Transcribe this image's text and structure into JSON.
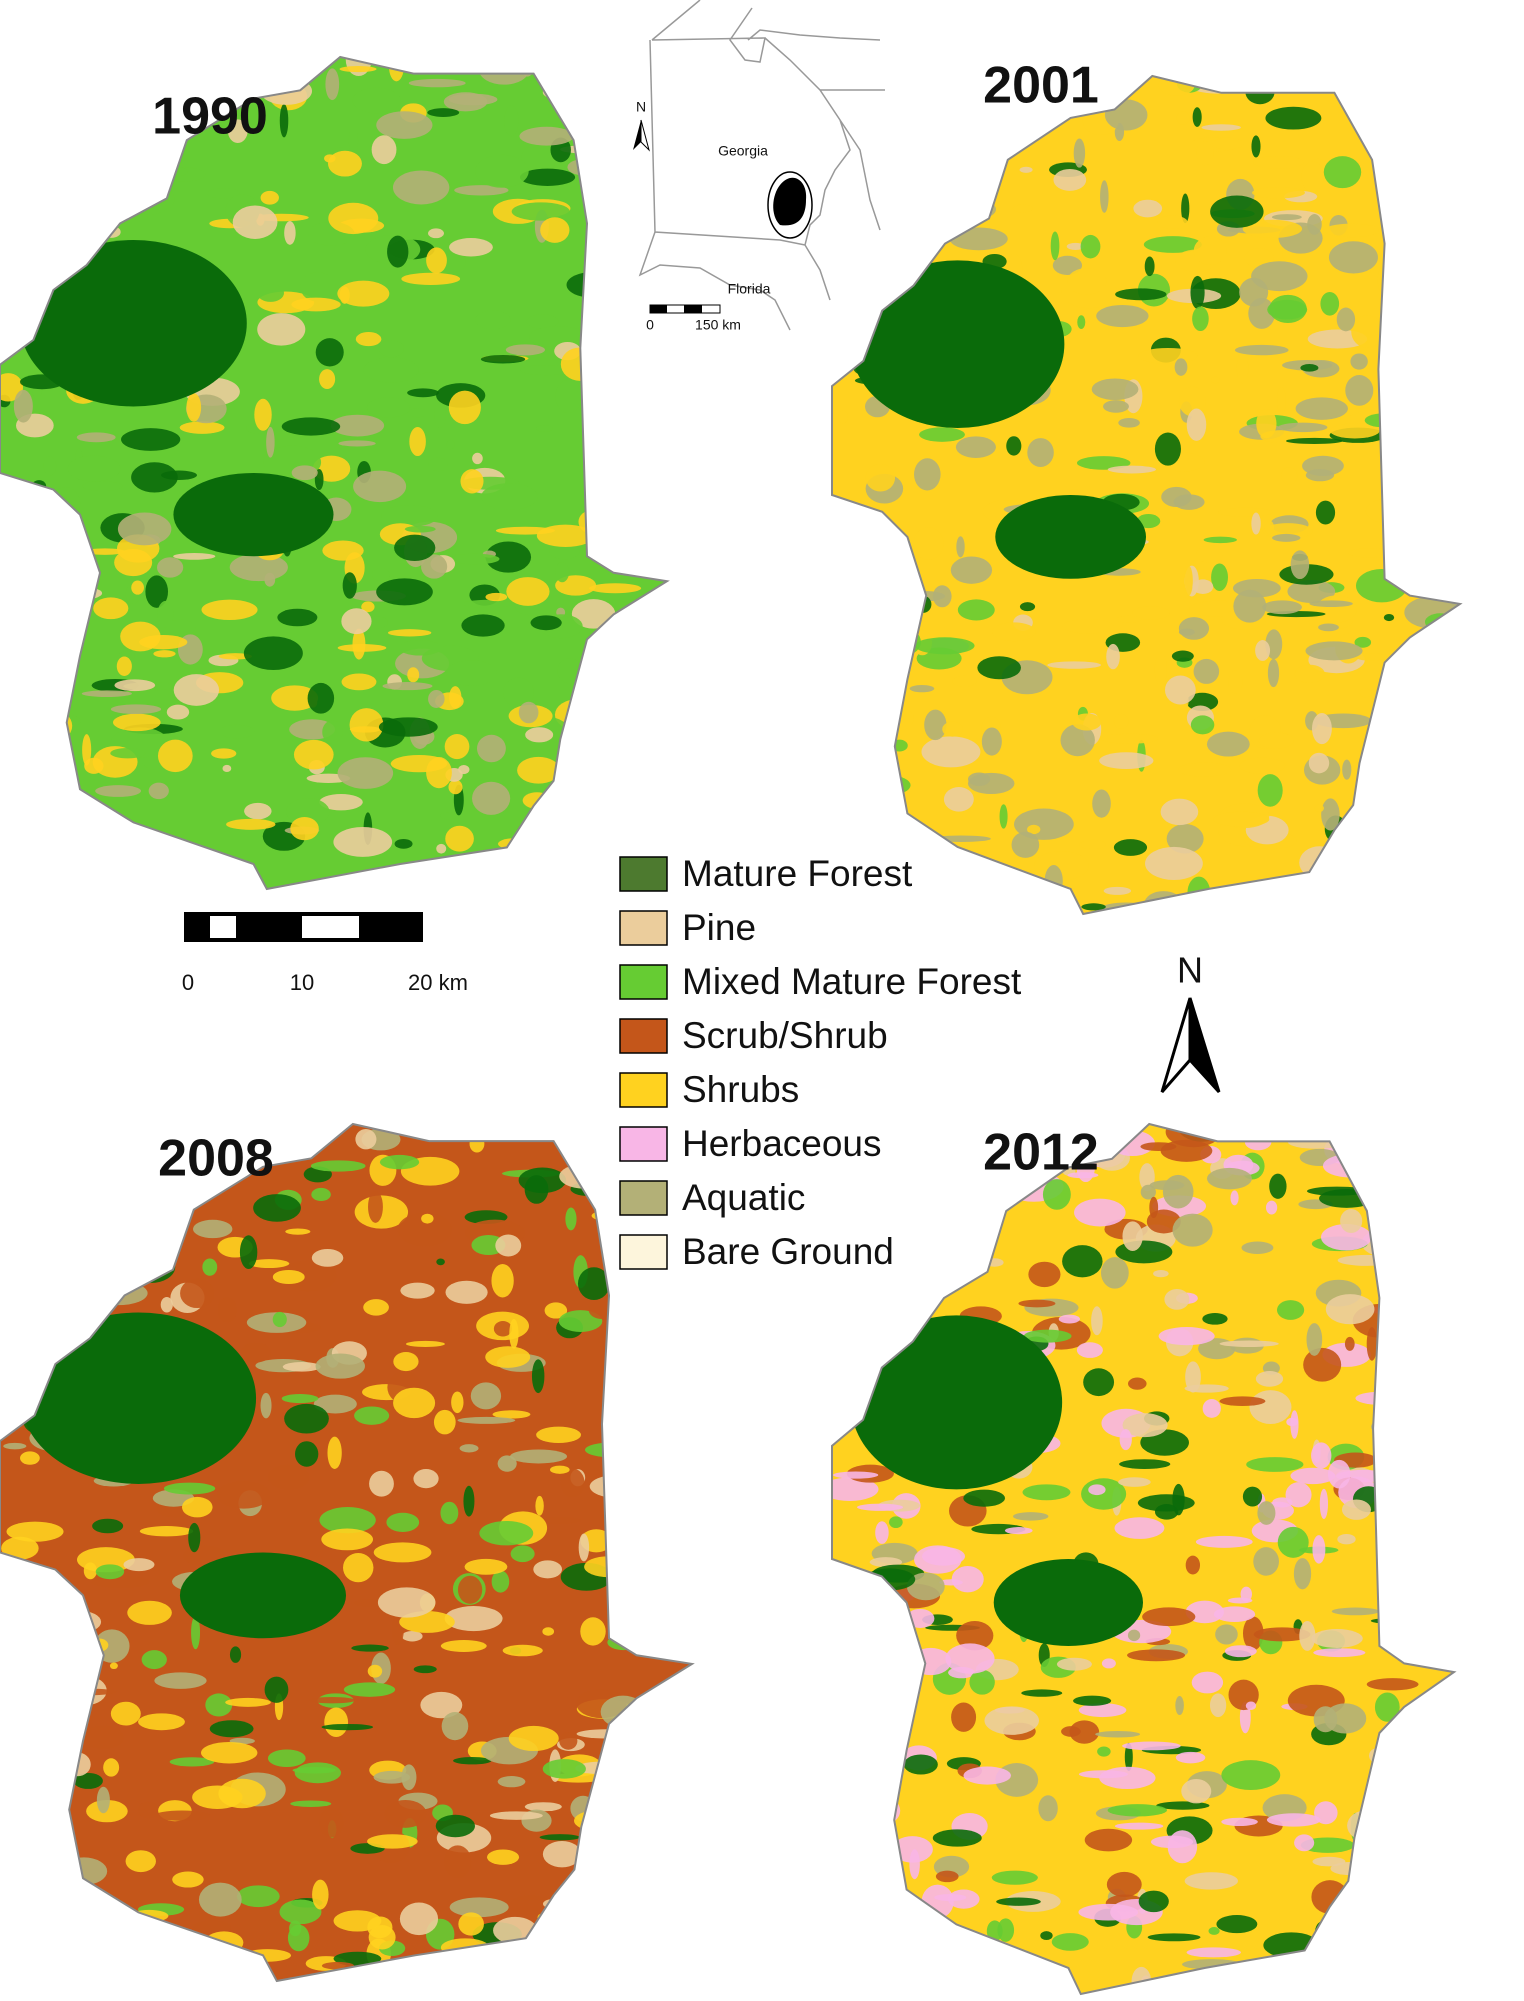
{
  "panels": [
    {
      "year": "1990"
    },
    {
      "year": "2001"
    },
    {
      "year": "2008"
    },
    {
      "year": "2012"
    }
  ],
  "legend": {
    "items": [
      {
        "label": "Mature Forest",
        "color": "#4d7a2f"
      },
      {
        "label": "Pine",
        "color": "#ebcd9c"
      },
      {
        "label": "Mixed Mature Forest",
        "color": "#66cc33"
      },
      {
        "label": "Scrub/Shrub",
        "color": "#c4561a"
      },
      {
        "label": "Shrubs",
        "color": "#ffd21f"
      },
      {
        "label": "Herbaceous",
        "color": "#f8b6e6"
      },
      {
        "label": "Aquatic",
        "color": "#b3b077"
      },
      {
        "label": "Bare Ground",
        "color": "#fdf5dc"
      }
    ]
  },
  "scale_bar": {
    "labels": [
      "0",
      "10",
      "20 km"
    ]
  },
  "north_arrow": "N",
  "inset": {
    "north": "N",
    "georgia": "Georgia",
    "florida": "Florida",
    "scale_labels": [
      "0",
      "150 km"
    ]
  }
}
